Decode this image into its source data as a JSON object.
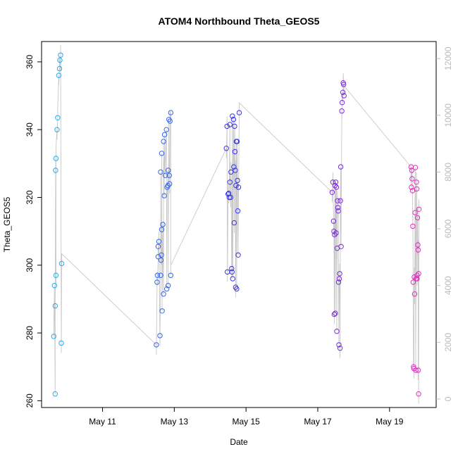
{
  "chart_data": {
    "type": "scatter",
    "title": "ATOM4 Northbound Theta_GEOS5",
    "xlabel": "Date",
    "ylabel": "Theta_GEOS5",
    "x_ticks": [
      "May 11",
      "May 13",
      "May 15",
      "May 17",
      "May 19"
    ],
    "x_tick_days": [
      11,
      13,
      15,
      17,
      19
    ],
    "xlim_days": [
      9.3,
      20.3
    ],
    "ylim": [
      258,
      366
    ],
    "y_ticks": [
      260,
      280,
      300,
      320,
      340,
      360
    ],
    "right_axis": {
      "ylim": [
        -300,
        12600
      ],
      "ticks": [
        0,
        2000,
        4000,
        6000,
        8000,
        10000,
        12000
      ],
      "color": "#bbbbbb"
    },
    "altitude_line_color": "#c8c8c8",
    "series": [
      {
        "color": "#29a9e8",
        "points": [
          [
            9.68,
            262.0
          ],
          [
            9.64,
            279.0
          ],
          [
            9.66,
            294.0
          ],
          [
            9.68,
            288.0
          ],
          [
            9.7,
            297.0
          ],
          [
            9.69,
            328.0
          ],
          [
            9.7,
            331.5
          ],
          [
            9.73,
            340.0
          ],
          [
            9.75,
            343.5
          ],
          [
            9.78,
            356.0
          ],
          [
            9.8,
            358.0
          ],
          [
            9.81,
            360.5
          ],
          [
            9.83,
            362.0
          ],
          [
            9.86,
            300.5
          ],
          [
            9.85,
            277.0
          ]
        ]
      },
      {
        "color": "#3366ee",
        "points": [
          [
            12.5,
            276.5
          ],
          [
            12.52,
            295.0
          ],
          [
            12.53,
            297.0
          ],
          [
            12.55,
            302.5
          ],
          [
            12.55,
            305.5
          ],
          [
            12.57,
            307.0
          ],
          [
            12.6,
            279.2
          ],
          [
            12.62,
            297.0
          ],
          [
            12.63,
            301.5
          ],
          [
            12.64,
            303.0
          ],
          [
            12.65,
            310.5
          ],
          [
            12.66,
            286.5
          ],
          [
            12.68,
            312.0
          ],
          [
            12.7,
            291.5
          ],
          [
            12.72,
            320.5
          ],
          [
            12.75,
            326.5
          ],
          [
            12.62,
            327.5
          ],
          [
            12.65,
            333.0
          ],
          [
            12.7,
            336.5
          ],
          [
            12.73,
            338.5
          ],
          [
            12.78,
            340.0
          ],
          [
            12.8,
            323.0
          ],
          [
            12.82,
            323.5
          ],
          [
            12.83,
            328.0
          ],
          [
            12.85,
            343.0
          ],
          [
            12.88,
            342.5
          ],
          [
            12.9,
            345.0
          ],
          [
            12.86,
            326.5
          ],
          [
            12.87,
            324.0
          ],
          [
            12.9,
            297.0
          ],
          [
            12.83,
            294.0
          ],
          [
            12.79,
            293.0
          ]
        ]
      },
      {
        "color": "#3a36e6",
        "points": [
          [
            14.45,
            334.5
          ],
          [
            14.47,
            341.0
          ],
          [
            14.48,
            298.0
          ],
          [
            14.5,
            321.0
          ],
          [
            14.52,
            321.2
          ],
          [
            14.53,
            320.0
          ],
          [
            14.55,
            341.5
          ],
          [
            14.55,
            324.5
          ],
          [
            14.57,
            320.0
          ],
          [
            14.58,
            327.5
          ],
          [
            14.6,
            299.0
          ],
          [
            14.61,
            298.0
          ],
          [
            14.62,
            344.0
          ],
          [
            14.63,
            296.0
          ],
          [
            14.65,
            343.0
          ],
          [
            14.66,
            329.0
          ],
          [
            14.67,
            312.5
          ],
          [
            14.68,
            341.0
          ],
          [
            14.69,
            333.5
          ],
          [
            14.7,
            328.0
          ],
          [
            14.71,
            293.5
          ],
          [
            14.72,
            323.5
          ],
          [
            14.73,
            336.5
          ],
          [
            14.74,
            293.0
          ],
          [
            14.75,
            336.5
          ],
          [
            14.76,
            325.0
          ],
          [
            14.77,
            316.0
          ],
          [
            14.78,
            303.0
          ],
          [
            14.79,
            323.0
          ],
          [
            14.81,
            345.0
          ]
        ]
      },
      {
        "color": "#7a2ad8",
        "points": [
          [
            17.4,
            321.5
          ],
          [
            17.42,
            324.5
          ],
          [
            17.44,
            313.0
          ],
          [
            17.45,
            310.0
          ],
          [
            17.46,
            285.5
          ],
          [
            17.47,
            309.0
          ],
          [
            17.48,
            323.5
          ],
          [
            17.49,
            285.8
          ],
          [
            17.5,
            324.5
          ],
          [
            17.51,
            309.5
          ],
          [
            17.52,
            323.0
          ],
          [
            17.53,
            280.5
          ],
          [
            17.54,
            305.0
          ],
          [
            17.55,
            319.0
          ],
          [
            17.56,
            317.0
          ],
          [
            17.57,
            316.0
          ],
          [
            17.58,
            295.0
          ],
          [
            17.59,
            276.5
          ],
          [
            17.6,
            296.0
          ],
          [
            17.61,
            297.5
          ],
          [
            17.62,
            275.5
          ],
          [
            17.63,
            319.0
          ],
          [
            17.64,
            329.0
          ],
          [
            17.65,
            305.5
          ],
          [
            17.67,
            345.5
          ],
          [
            17.68,
            348.0
          ],
          [
            17.7,
            351.0
          ],
          [
            17.71,
            353.8
          ],
          [
            17.72,
            353.3
          ],
          [
            17.73,
            350.0
          ]
        ]
      },
      {
        "color": "#e02fc0",
        "points": [
          [
            19.6,
            329.0
          ],
          [
            19.61,
            323.0
          ],
          [
            19.62,
            328.0
          ],
          [
            19.63,
            325.5
          ],
          [
            19.64,
            322.0
          ],
          [
            19.65,
            311.5
          ],
          [
            19.66,
            295.0
          ],
          [
            19.67,
            270.0
          ],
          [
            19.68,
            269.5
          ],
          [
            19.69,
            296.5
          ],
          [
            19.7,
            291.5
          ],
          [
            19.71,
            315.5
          ],
          [
            19.72,
            328.8
          ],
          [
            19.73,
            269.0
          ],
          [
            19.74,
            296.0
          ],
          [
            19.75,
            324.5
          ],
          [
            19.76,
            322.5
          ],
          [
            19.77,
            296.0
          ],
          [
            19.78,
            314.0
          ],
          [
            19.79,
            306.0
          ],
          [
            19.8,
            304.5
          ],
          [
            19.81,
            297.5
          ],
          [
            19.82,
            316.5
          ],
          [
            19.8,
            269.0
          ],
          [
            19.81,
            262.0
          ],
          [
            19.77,
            297.0
          ]
        ]
      }
    ]
  }
}
